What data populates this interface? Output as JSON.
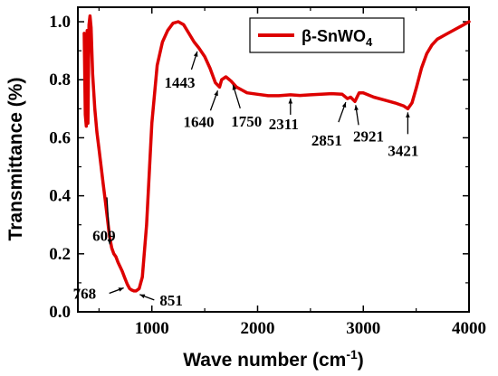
{
  "chart_data": {
    "type": "line",
    "xlabel": "Wave number (cm",
    "xlabel_sup": "-1",
    "xlabel_close": ")",
    "ylabel": "Transmittance (%)",
    "xlim": [
      300,
      4000
    ],
    "ylim": [
      0.0,
      1.05
    ],
    "xticks": [
      1000,
      2000,
      3000,
      4000
    ],
    "xtick_labels": [
      "1000",
      "2000",
      "3000",
      "4000"
    ],
    "yticks": [
      0.0,
      0.2,
      0.4,
      0.6,
      0.8,
      1.0
    ],
    "ytick_labels": [
      "0.0",
      "0.2",
      "0.4",
      "0.6",
      "0.8",
      "1.0"
    ],
    "legend": {
      "position": "top-right",
      "label": "β-SnWO",
      "label_sub": "4"
    },
    "grid": false,
    "series": [
      {
        "name": "β-SnWO4",
        "color": "#dd0000",
        "x": [
          360,
          370,
          380,
          388,
          395,
          405,
          415,
          425,
          440,
          460,
          480,
          500,
          520,
          540,
          560,
          580,
          600,
          620,
          640,
          660,
          680,
          700,
          720,
          740,
          768,
          790,
          810,
          830,
          851,
          880,
          910,
          950,
          1000,
          1050,
          1100,
          1150,
          1200,
          1250,
          1300,
          1350,
          1400,
          1443,
          1500,
          1550,
          1600,
          1640,
          1660,
          1700,
          1750,
          1800,
          1850,
          1900,
          2000,
          2100,
          2200,
          2311,
          2400,
          2500,
          2600,
          2700,
          2800,
          2851,
          2880,
          2921,
          2960,
          3000,
          3100,
          3200,
          3300,
          3380,
          3421,
          3460,
          3500,
          3550,
          3600,
          3650,
          3700,
          3800,
          3900,
          3950,
          4000
        ],
        "y": [
          0.96,
          0.68,
          0.64,
          0.97,
          0.65,
          0.99,
          1.02,
          0.98,
          0.82,
          0.7,
          0.62,
          0.56,
          0.5,
          0.44,
          0.38,
          0.32,
          0.26,
          0.22,
          0.2,
          0.19,
          0.17,
          0.155,
          0.14,
          0.12,
          0.095,
          0.08,
          0.075,
          0.072,
          0.072,
          0.08,
          0.12,
          0.3,
          0.65,
          0.85,
          0.93,
          0.97,
          0.995,
          1.0,
          0.99,
          0.96,
          0.93,
          0.91,
          0.88,
          0.84,
          0.79,
          0.775,
          0.8,
          0.81,
          0.795,
          0.775,
          0.765,
          0.755,
          0.75,
          0.745,
          0.745,
          0.748,
          0.746,
          0.748,
          0.75,
          0.752,
          0.75,
          0.735,
          0.74,
          0.725,
          0.755,
          0.755,
          0.74,
          0.73,
          0.72,
          0.71,
          0.7,
          0.72,
          0.77,
          0.84,
          0.89,
          0.92,
          0.94,
          0.96,
          0.98,
          0.99,
          1.0
        ]
      }
    ],
    "annotations": [
      {
        "label": "609",
        "x": 609,
        "y": 0.22
      },
      {
        "label": "768",
        "x": 768,
        "y": 0.095
      },
      {
        "label": "851",
        "x": 851,
        "y": 0.072
      },
      {
        "label": "1443",
        "x": 1443,
        "y": 0.91
      },
      {
        "label": "1640",
        "x": 1640,
        "y": 0.775
      },
      {
        "label": "1750",
        "x": 1750,
        "y": 0.795
      },
      {
        "label": "2311",
        "x": 2311,
        "y": 0.748
      },
      {
        "label": "2851",
        "x": 2851,
        "y": 0.735
      },
      {
        "label": "2921",
        "x": 2921,
        "y": 0.725
      },
      {
        "label": "3421",
        "x": 3421,
        "y": 0.7
      }
    ]
  }
}
